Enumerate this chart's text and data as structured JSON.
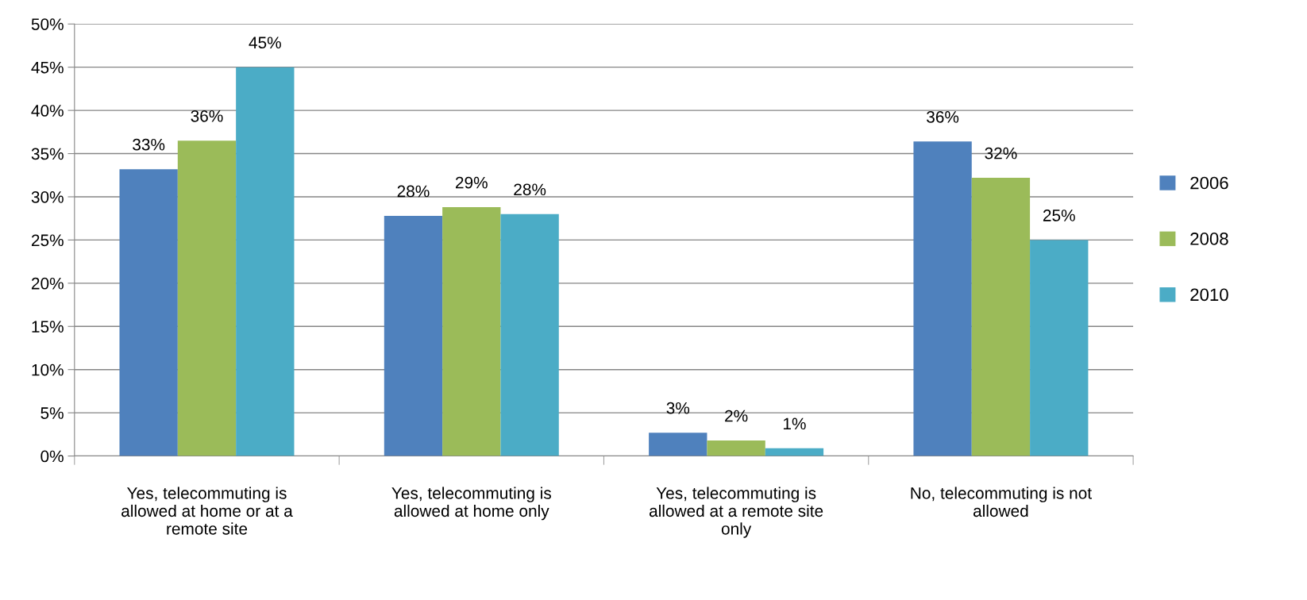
{
  "chart_data": {
    "type": "bar",
    "categories": [
      "Yes, telecommuting is allowed at home or at a remote site",
      "Yes, telecommuting is allowed at home only",
      "Yes, telecommuting is allowed at a remote site only",
      "No, telecommuting is not allowed"
    ],
    "series": [
      {
        "name": "2006",
        "color": "#4f81bd",
        "values": [
          33.2,
          27.8,
          2.7,
          36.4
        ],
        "value_labels": [
          "33%",
          "28%",
          "3%",
          "36%"
        ]
      },
      {
        "name": "2008",
        "color": "#9bbb59",
        "values": [
          36.5,
          28.8,
          1.8,
          32.2
        ],
        "value_labels": [
          "36%",
          "29%",
          "2%",
          "32%"
        ]
      },
      {
        "name": "2010",
        "color": "#4bacc6",
        "values": [
          45.0,
          28.0,
          0.9,
          25.0
        ],
        "value_labels": [
          "45%",
          "28%",
          "1%",
          "25%"
        ]
      }
    ],
    "ylim": [
      0,
      50
    ],
    "yticks": [
      {
        "value": 0,
        "label": "0%"
      },
      {
        "value": 5,
        "label": "5%"
      },
      {
        "value": 10,
        "label": "10%"
      },
      {
        "value": 15,
        "label": "15%"
      },
      {
        "value": 20,
        "label": "20%"
      },
      {
        "value": 25,
        "label": "25%"
      },
      {
        "value": 30,
        "label": "30%"
      },
      {
        "value": 35,
        "label": "35%"
      },
      {
        "value": 40,
        "label": "40%"
      },
      {
        "value": 45,
        "label": "45%"
      },
      {
        "value": 50,
        "label": "50%"
      }
    ],
    "grid": "y",
    "legend": "right"
  }
}
